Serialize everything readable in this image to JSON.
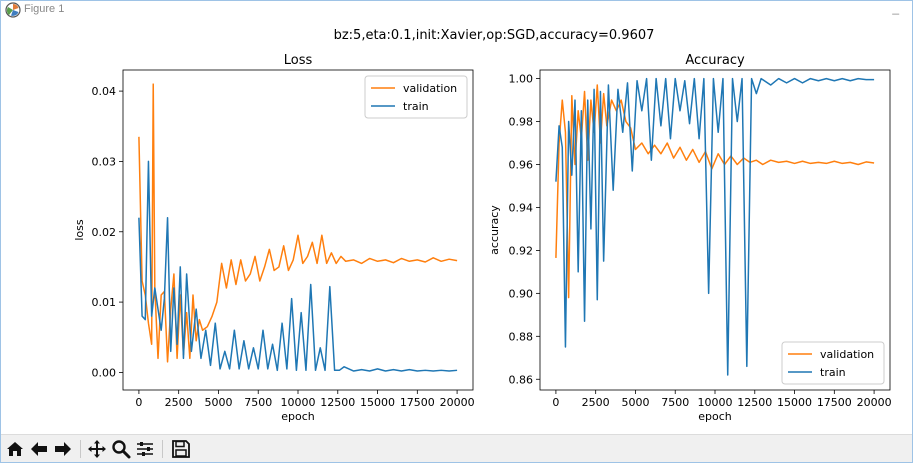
{
  "window": {
    "title": "Figure 1",
    "minimize_glyph": "_"
  },
  "figure": {
    "suptitle": "bz:5,eta:0.1,init:Xavier,op:SGD,accuracy=0.9607"
  },
  "colors": {
    "validation": "#ff7f0e",
    "train": "#1f77b4"
  },
  "toolbar": {
    "buttons": [
      "home-icon",
      "back-arrow-icon",
      "forward-arrow-icon",
      "pan-icon",
      "zoom-icon",
      "configure-subplots-icon",
      "save-icon"
    ]
  },
  "chart_data": [
    {
      "type": "line",
      "title": "Loss",
      "xlabel": "epoch",
      "ylabel": "loss",
      "xlim": [
        -1000,
        21000
      ],
      "ylim": [
        -0.0025,
        0.043
      ],
      "xticks": [
        0,
        2500,
        5000,
        7500,
        10000,
        12500,
        15000,
        17500,
        20000
      ],
      "xtick_labels": [
        "0",
        "2500",
        "5000",
        "7500",
        "10000",
        "12500",
        "15000",
        "17500",
        "20000"
      ],
      "yticks": [
        0.0,
        0.01,
        0.02,
        0.03,
        0.04
      ],
      "ytick_labels": [
        "0.00",
        "0.01",
        "0.02",
        "0.03",
        "0.04"
      ],
      "legend": "upper-right",
      "series": [
        {
          "name": "validation",
          "x": [
            0,
            200,
            400,
            600,
            800,
            900,
            1000,
            1200,
            1400,
            1600,
            1800,
            2000,
            2200,
            2400,
            2600,
            2800,
            3000,
            3200,
            3400,
            3600,
            3800,
            4000,
            4300,
            4600,
            4900,
            5200,
            5500,
            5800,
            6100,
            6400,
            6700,
            7000,
            7300,
            7600,
            7900,
            8200,
            8500,
            8800,
            9100,
            9400,
            9700,
            10000,
            10300,
            10600,
            10900,
            11200,
            11500,
            11800,
            12100,
            12400,
            12700,
            13000,
            13500,
            14000,
            14500,
            15000,
            15500,
            16000,
            16500,
            17000,
            17500,
            18000,
            18500,
            19000,
            19500,
            20000
          ],
          "values": [
            0.0335,
            0.013,
            0.011,
            0.007,
            0.004,
            0.041,
            0.012,
            0.002,
            0.011,
            0.0115,
            0.0015,
            0.009,
            0.014,
            0.002,
            0.011,
            0.0025,
            0.0085,
            0.002,
            0.011,
            0.0045,
            0.0075,
            0.006,
            0.0065,
            0.008,
            0.01,
            0.0155,
            0.012,
            0.016,
            0.0125,
            0.016,
            0.013,
            0.014,
            0.0165,
            0.013,
            0.015,
            0.0175,
            0.0145,
            0.015,
            0.018,
            0.0145,
            0.016,
            0.0195,
            0.0155,
            0.0165,
            0.0185,
            0.0155,
            0.0195,
            0.0155,
            0.017,
            0.0155,
            0.0165,
            0.0158,
            0.016,
            0.0155,
            0.0162,
            0.0158,
            0.016,
            0.0156,
            0.0162,
            0.0158,
            0.016,
            0.0157,
            0.0163,
            0.0158,
            0.0161,
            0.0159
          ]
        },
        {
          "name": "train",
          "x": [
            0,
            200,
            400,
            600,
            800,
            1000,
            1200,
            1400,
            1600,
            1800,
            2000,
            2200,
            2400,
            2600,
            2800,
            3000,
            3300,
            3600,
            3900,
            4200,
            4500,
            4800,
            5100,
            5400,
            5700,
            6000,
            6300,
            6600,
            6900,
            7200,
            7500,
            7800,
            8100,
            8400,
            8700,
            9000,
            9300,
            9600,
            9900,
            10200,
            10500,
            10800,
            11100,
            11400,
            11700,
            12000,
            12300,
            12600,
            12900,
            13500,
            14000,
            14500,
            15000,
            15500,
            16000,
            16500,
            17000,
            17500,
            18000,
            18500,
            19000,
            19500,
            20000
          ],
          "values": [
            0.022,
            0.008,
            0.0075,
            0.03,
            0.008,
            0.012,
            0.009,
            0.006,
            0.0105,
            0.022,
            0.003,
            0.012,
            0.004,
            0.015,
            0.002,
            0.014,
            0.003,
            0.009,
            0.002,
            0.006,
            0.001,
            0.007,
            0.0005,
            0.003,
            0.0005,
            0.006,
            0.0005,
            0.0045,
            0.0005,
            0.0035,
            0.0005,
            0.006,
            0.0005,
            0.004,
            0.0003,
            0.007,
            0.0005,
            0.0105,
            0.0003,
            0.0085,
            0.0003,
            0.0125,
            0.0003,
            0.0035,
            0.0003,
            0.0122,
            0.0003,
            0.0003,
            0.0008,
            0.0002,
            0.0004,
            0.0002,
            0.0005,
            0.0002,
            0.0004,
            0.0002,
            0.0004,
            0.0002,
            0.0003,
            0.0002,
            0.0003,
            0.0002,
            0.0003
          ]
        }
      ]
    },
    {
      "type": "line",
      "title": "Accuracy",
      "xlabel": "epoch",
      "ylabel": "accuracy",
      "xlim": [
        -1000,
        21000
      ],
      "ylim": [
        0.855,
        1.004
      ],
      "xticks": [
        0,
        2500,
        5000,
        7500,
        10000,
        12500,
        15000,
        17500,
        20000
      ],
      "xtick_labels": [
        "0",
        "2500",
        "5000",
        "7500",
        "10000",
        "12500",
        "15000",
        "17500",
        "20000"
      ],
      "yticks": [
        0.86,
        0.88,
        0.9,
        0.92,
        0.94,
        0.96,
        0.98,
        1.0
      ],
      "ytick_labels": [
        "0.86",
        "0.88",
        "0.90",
        "0.92",
        "0.94",
        "0.96",
        "0.98",
        "1.00"
      ],
      "legend": "lower-right",
      "series": [
        {
          "name": "validation",
          "x": [
            0,
            200,
            400,
            600,
            800,
            1000,
            1200,
            1400,
            1600,
            1800,
            2000,
            2200,
            2400,
            2600,
            2800,
            3000,
            3200,
            3500,
            3800,
            4100,
            4400,
            4700,
            5000,
            5400,
            5800,
            6200,
            6600,
            7000,
            7400,
            7800,
            8200,
            8600,
            9000,
            9400,
            9800,
            10200,
            10600,
            11000,
            11400,
            11800,
            12200,
            12600,
            13000,
            13500,
            14000,
            14500,
            15000,
            15500,
            16000,
            16500,
            17000,
            17500,
            18000,
            18500,
            19000,
            19500,
            20000
          ],
          "values": [
            0.9165,
            0.97,
            0.99,
            0.975,
            0.898,
            0.992,
            0.96,
            0.985,
            0.972,
            0.994,
            0.962,
            0.99,
            0.975,
            0.997,
            0.97,
            0.993,
            0.978,
            0.99,
            0.985,
            0.99,
            0.98,
            0.977,
            0.967,
            0.97,
            0.965,
            0.969,
            0.965,
            0.97,
            0.963,
            0.968,
            0.962,
            0.967,
            0.961,
            0.966,
            0.958,
            0.965,
            0.96,
            0.964,
            0.96,
            0.963,
            0.961,
            0.962,
            0.96,
            0.962,
            0.961,
            0.9615,
            0.9605,
            0.9615,
            0.9605,
            0.961,
            0.9605,
            0.9615,
            0.9605,
            0.961,
            0.96,
            0.9612,
            0.9607
          ]
        },
        {
          "name": "train",
          "x": [
            0,
            200,
            400,
            600,
            800,
            1000,
            1200,
            1400,
            1600,
            1800,
            2000,
            2200,
            2400,
            2600,
            2800,
            3000,
            3300,
            3600,
            3900,
            4200,
            4500,
            4800,
            5100,
            5400,
            5700,
            6000,
            6300,
            6600,
            6900,
            7200,
            7500,
            7800,
            8100,
            8400,
            8700,
            9000,
            9300,
            9600,
            9900,
            10200,
            10500,
            10800,
            11100,
            11400,
            11700,
            12000,
            12300,
            12600,
            12900,
            13500,
            14000,
            14500,
            15000,
            15500,
            16000,
            16500,
            17000,
            17500,
            18000,
            18500,
            19000,
            19500,
            20000
          ],
          "values": [
            0.952,
            0.978,
            0.968,
            0.875,
            0.98,
            0.955,
            0.99,
            0.91,
            0.985,
            0.887,
            0.99,
            0.93,
            0.995,
            0.897,
            0.994,
            0.915,
            0.997,
            0.948,
            0.995,
            0.975,
            0.998,
            0.957,
            0.999,
            0.985,
            1.0,
            0.962,
            1.0,
            0.978,
            1.0,
            0.972,
            1.0,
            0.985,
            0.999,
            0.979,
            1.0,
            0.972,
            1.0,
            0.9,
            1.0,
            0.975,
            1.0,
            0.862,
            1.0,
            0.98,
            1.0,
            0.866,
            1.0,
            0.993,
            1.0,
            0.997,
            1.0,
            0.998,
            1.0,
            0.998,
            1.0,
            0.999,
            1.0,
            0.999,
            1.0,
            0.999,
            1.0,
            0.9995,
            0.9995
          ]
        }
      ]
    }
  ]
}
